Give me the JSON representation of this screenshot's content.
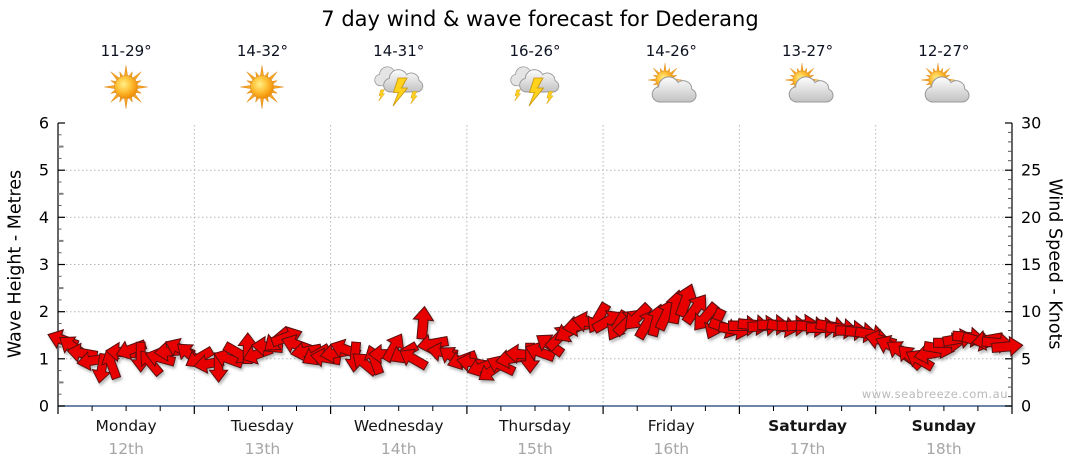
{
  "title": "7 day wind & wave forecast for Dederang",
  "watermark": "www.seabreeze.com.au",
  "axes": {
    "left_label": "Wave Height - Metres",
    "right_label": "Wind Speed - Knots",
    "left_min": 0,
    "left_max": 6,
    "right_min": 0,
    "right_max": 30
  },
  "days": [
    {
      "name": "Monday",
      "date": "12th",
      "temp": "11-29°",
      "icon": "sun",
      "bold": false
    },
    {
      "name": "Tuesday",
      "date": "13th",
      "temp": "14-32°",
      "icon": "sun",
      "bold": false
    },
    {
      "name": "Wednesday",
      "date": "14th",
      "temp": "14-31°",
      "icon": "storm",
      "bold": false
    },
    {
      "name": "Thursday",
      "date": "15th",
      "temp": "16-26°",
      "icon": "storm",
      "bold": false
    },
    {
      "name": "Friday",
      "date": "16th",
      "temp": "14-26°",
      "icon": "sun-cloud",
      "bold": false
    },
    {
      "name": "Saturday",
      "date": "17th",
      "temp": "13-27°",
      "icon": "sun-cloud",
      "bold": true
    },
    {
      "name": "Sunday",
      "date": "18th",
      "temp": "12-27°",
      "icon": "sun-cloud",
      "bold": true
    }
  ],
  "colors": {
    "arrow": "#e80000",
    "arrow_outline": "#5a1010",
    "grid": "#b5b5b5",
    "axis": "#000000",
    "axis_bottom_blue": "#3d5e8c",
    "date_text": "#a6a6a6",
    "watermark_text": "#b9b9b9"
  },
  "chart_data": {
    "type": "scatter",
    "subtype": "wind-direction-arrows",
    "title": "7 day wind & wave forecast for Dederang",
    "x_categories": [
      "Monday 12th",
      "Tuesday 13th",
      "Wednesday 14th",
      "Thursday 15th",
      "Friday 16th",
      "Saturday 17th",
      "Sunday 18th"
    ],
    "ylabel_left": "Wave Height - Metres",
    "ylabel_right": "Wind Speed - Knots",
    "ylim_left": [
      0,
      6
    ],
    "ylim_right": [
      0,
      30
    ],
    "grid": "dotted, horizontal every 1 m (= 5 knots), vertical at day boundaries",
    "legend": "none",
    "daily_summary": [
      {
        "day": "Monday",
        "temp_range_c": [
          11,
          29
        ],
        "weather": "sunny",
        "wind_knots_range": [
          4,
          7
        ]
      },
      {
        "day": "Tuesday",
        "temp_range_c": [
          14,
          32
        ],
        "weather": "sunny",
        "wind_knots_range": [
          4,
          7.5
        ]
      },
      {
        "day": "Wednesday",
        "temp_range_c": [
          14,
          31
        ],
        "weather": "thunderstorms",
        "wind_knots_range": [
          4.5,
          9
        ]
      },
      {
        "day": "Thursday",
        "temp_range_c": [
          16,
          26
        ],
        "weather": "thunderstorms",
        "wind_knots_range": [
          3.5,
          9.5
        ]
      },
      {
        "day": "Friday",
        "temp_range_c": [
          14,
          26
        ],
        "weather": "partly-cloudy",
        "wind_knots_range": [
          8,
          11.5
        ]
      },
      {
        "day": "Saturday",
        "temp_range_c": [
          13,
          27
        ],
        "weather": "partly-cloudy",
        "wind_knots_range": [
          7.5,
          8.6
        ]
      },
      {
        "day": "Sunday",
        "temp_range_c": [
          12,
          27
        ],
        "weather": "partly-cloudy",
        "wind_knots_range": [
          4.8,
          7.3
        ]
      }
    ],
    "wind_arrows": {
      "points_per_day": 14,
      "units": "knots",
      "direction_convention": "degrees; 0 = arrow points right (toward later time), positive = clockwise, -90 = up",
      "speeds_knots": [
        7.0,
        6.3,
        5.6,
        4.8,
        4.0,
        4.4,
        5.7,
        6.0,
        5.2,
        4.6,
        5.1,
        5.8,
        6.1,
        5.5,
        5.1,
        4.5,
        4.1,
        5.0,
        5.6,
        6.1,
        5.5,
        6.3,
        7.0,
        7.3,
        6.5,
        5.8,
        5.4,
        5.1,
        5.6,
        6.0,
        5.2,
        4.5,
        4.9,
        5.5,
        6.2,
        5.6,
        5.0,
        8.8,
        6.6,
        5.7,
        5.2,
        4.9,
        4.6,
        4.1,
        3.7,
        4.3,
        5.0,
        5.5,
        5.1,
        5.7,
        6.5,
        7.3,
        7.9,
        8.5,
        8.9,
        9.3,
        9.0,
        8.5,
        8.9,
        9.4,
        8.7,
        9.1,
        9.7,
        10.5,
        11.2,
        10.3,
        9.4,
        8.7,
        8.3,
        8.1,
        8.5,
        8.6,
        8.5,
        8.6,
        8.4,
        8.5,
        8.6,
        8.4,
        8.3,
        8.4,
        8.2,
        8.0,
        7.8,
        7.6,
        7.0,
        6.4,
        5.8,
        5.2,
        4.9,
        5.5,
        6.1,
        6.7,
        7.1,
        7.3,
        6.9,
        7.0,
        6.7,
        6.3
      ],
      "directions_deg": [
        200,
        215,
        190,
        170,
        100,
        250,
        185,
        160,
        90,
        230,
        195,
        175,
        205,
        220,
        150,
        170,
        90,
        200,
        30,
        -90,
        160,
        185,
        140,
        -20,
        200,
        170,
        150,
        190,
        170,
        200,
        95,
        220,
        250,
        180,
        -60,
        150,
        210,
        -85,
        170,
        190,
        215,
        160,
        190,
        160,
        145,
        205,
        170,
        185,
        90,
        200,
        215,
        -45,
        150,
        170,
        190,
        120,
        -30,
        120,
        -45,
        135,
        -60,
        -75,
        -65,
        -80,
        -70,
        -55,
        130,
        115,
        20,
        10,
        0,
        5,
        -5,
        0,
        10,
        0,
        -5,
        5,
        0,
        10,
        5,
        0,
        5,
        10,
        195,
        205,
        215,
        225,
        210,
        170,
        10,
        0,
        -10,
        5,
        15,
        170,
        5,
        -5
      ]
    }
  }
}
